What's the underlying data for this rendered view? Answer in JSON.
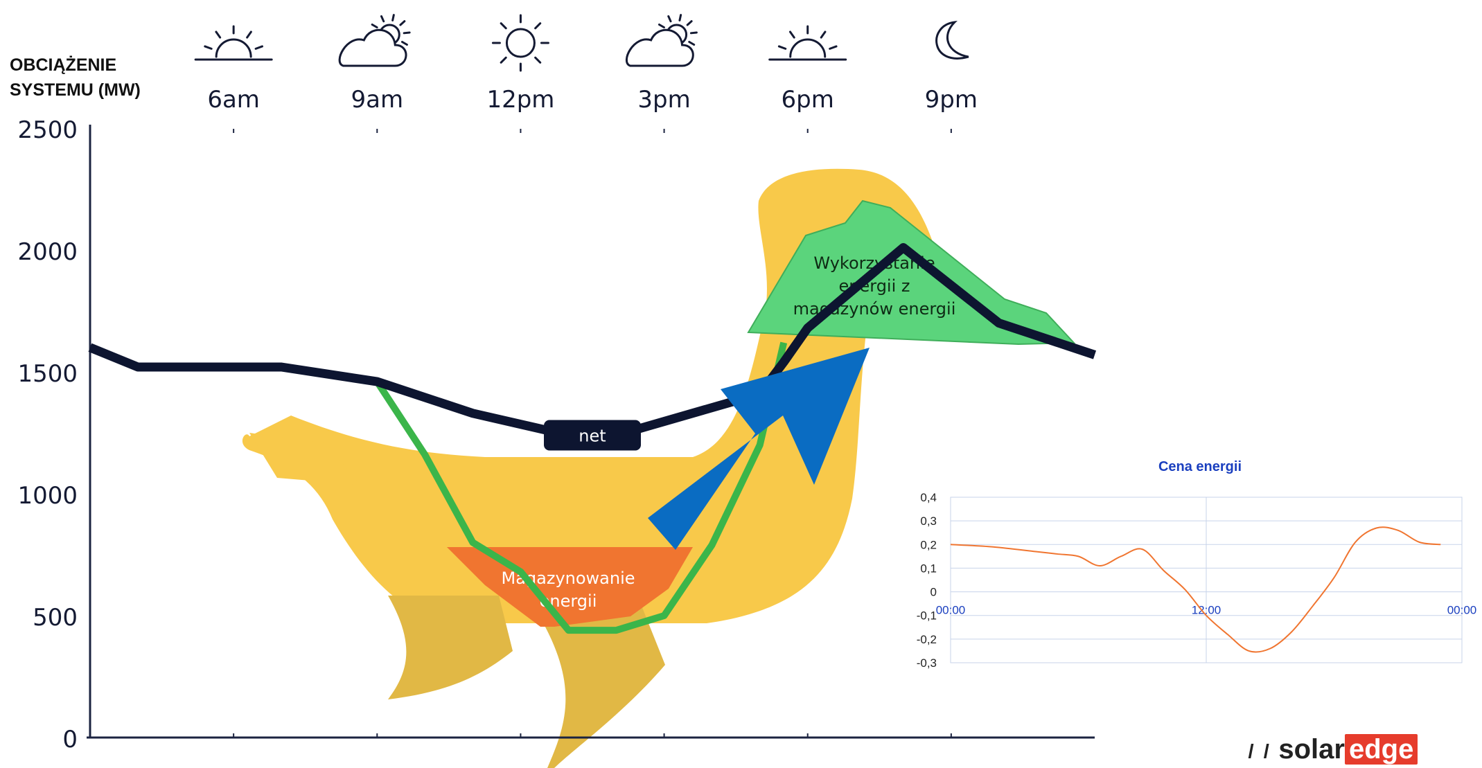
{
  "main_chart": {
    "y_title_line1": "OBCIĄŻENIE",
    "y_title_line2": "SYSTEMU (MW)",
    "y_ticks": [
      0,
      500,
      1000,
      1500,
      2000,
      2500
    ],
    "time_labels": [
      "6am",
      "9am",
      "12pm",
      "3pm",
      "6pm",
      "9pm"
    ],
    "weather_icons": [
      "sunrise-icon",
      "partly-cloudy-icon",
      "sun-icon",
      "partly-cloudy-icon",
      "sunset-icon",
      "moon-icon"
    ],
    "net_label": "net",
    "storage_label": "Magazynowanie energii",
    "storage_label_line1": "Magazynowanie",
    "storage_label_line2": "energii",
    "usage_label_line1": "Wykorzystanie",
    "usage_label_line2": "energii z",
    "usage_label_line3": "magazynów energii",
    "colors": {
      "net_line": "#0d1530",
      "load_line": "#3bb54a",
      "duck_body": "#f8c94a",
      "storage_fill": "#f07530",
      "usage_fill": "#5bd47c",
      "arrow": "#0a6cc2"
    }
  },
  "price_chart": {
    "title": "Cena energii",
    "y_ticks": [
      "0,4",
      "0,3",
      "0,2",
      "0,1",
      "0",
      "-0,1",
      "-0,2",
      "-0,3"
    ],
    "x_labels": [
      "00:00",
      "12:00",
      "00:00"
    ],
    "line_color": "#f07530",
    "title_color": "#1a3fbf"
  },
  "chart_data": [
    {
      "type": "line",
      "title": "",
      "ylabel": "OBCIĄŻENIE SYSTEMU (MW)",
      "xlabel": "",
      "x_tick_labels": [
        "6am",
        "9am",
        "12pm",
        "3pm",
        "6pm",
        "9pm"
      ],
      "ylim": [
        0,
        2500
      ],
      "series": [
        {
          "name": "net",
          "x_hours": [
            3.0,
            4.0,
            7.0,
            9.0,
            11.0,
            13.0,
            14.0,
            17.0,
            17.5,
            18.0,
            20.0,
            22.0,
            24.0
          ],
          "values": [
            1600,
            1520,
            1520,
            1460,
            1330,
            1240,
            1240,
            1410,
            1540,
            1680,
            2010,
            1700,
            1570
          ]
        },
        {
          "x_hours": [
            7.0,
            9.0,
            10.0,
            11.0,
            12.0,
            13.0,
            14.0,
            15.0,
            16.0,
            17.0,
            17.5
          ],
          "values": [
            1520,
            1460,
            1160,
            800,
            680,
            440,
            440,
            500,
            790,
            1200,
            1620
          ]
        }
      ],
      "annotations": [
        "net",
        "Magazynowanie energii",
        "Wykorzystanie energii z magazynów energii"
      ]
    },
    {
      "type": "line",
      "title": "Cena energii",
      "x_tick_labels": [
        "00:00",
        "12:00",
        "00:00"
      ],
      "ylim": [
        -0.3,
        0.4
      ],
      "x_hours": [
        0,
        2,
        4,
        5,
        6,
        7,
        8,
        9,
        10,
        11,
        12,
        13,
        14,
        15,
        16,
        17,
        18,
        19,
        20,
        21,
        22,
        23
      ],
      "values": [
        0.2,
        0.19,
        0.17,
        0.16,
        0.15,
        0.11,
        0.15,
        0.18,
        0.09,
        0.01,
        -0.1,
        -0.18,
        -0.25,
        -0.24,
        -0.17,
        -0.06,
        0.06,
        0.21,
        0.27,
        0.26,
        0.21,
        0.2
      ]
    }
  ],
  "brand": {
    "logo_mark": "ı ı",
    "logo_text_a": "solar",
    "logo_text_b": "edge"
  }
}
